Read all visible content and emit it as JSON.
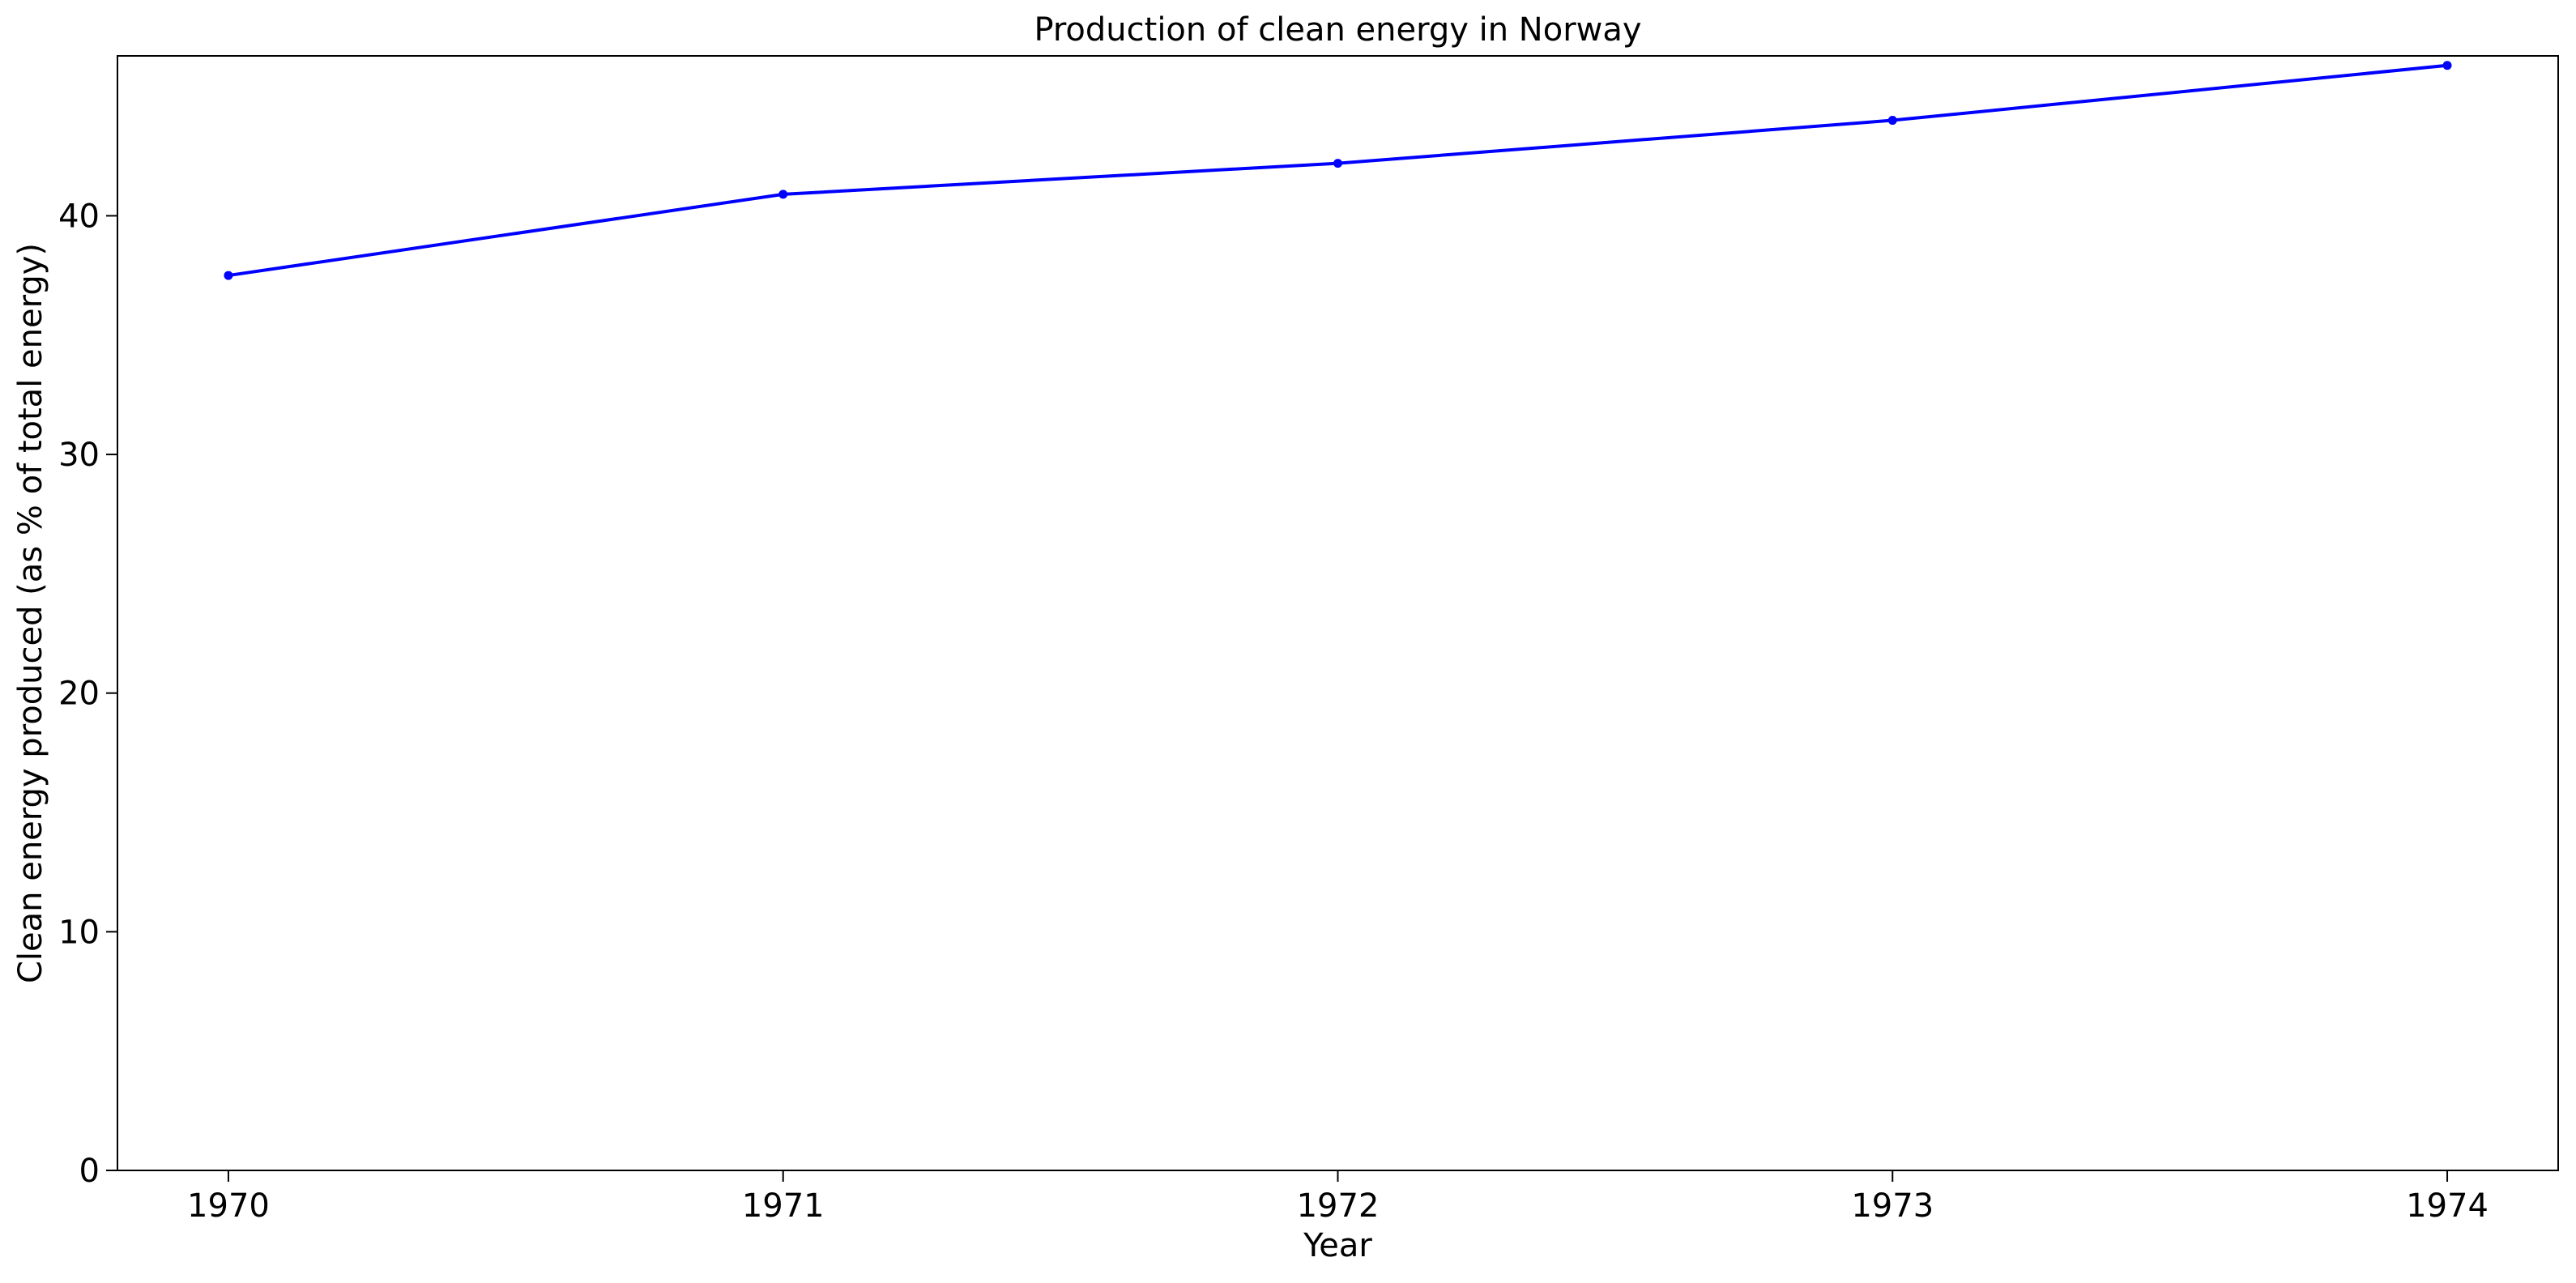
{
  "chart_data": {
    "type": "line",
    "title": "Production of clean energy in Norway",
    "xlabel": "Year",
    "ylabel": "Clean energy produced (as % of total energy)",
    "x": [
      1970,
      1971,
      1972,
      1973,
      1974
    ],
    "series": [
      {
        "values": [
          37.5,
          40.9,
          42.2,
          44.0,
          46.3
        ],
        "color": "#0000ff",
        "marker": "dot"
      }
    ],
    "x_ticks": [
      "1970",
      "1971",
      "1972",
      "1973",
      "1974"
    ],
    "y_ticks": [
      "0",
      "10",
      "20",
      "30",
      "40"
    ],
    "xlim": [
      1969.8,
      1974.2
    ],
    "ylim": [
      0,
      46.7
    ],
    "grid": false,
    "legend": false
  }
}
